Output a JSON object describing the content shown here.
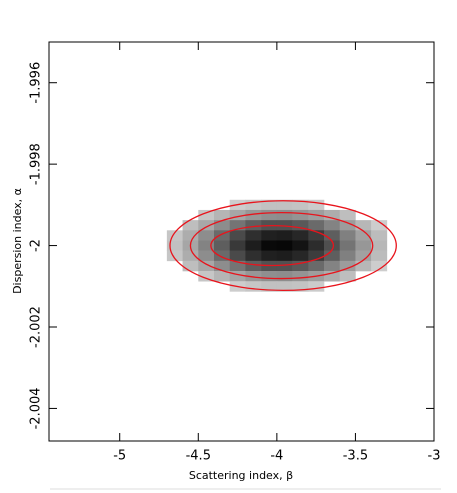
{
  "chart_data": {
    "type": "heatmap",
    "xlabel": "Scattering index, β",
    "ylabel": "Dispersion index, α",
    "xlim": [
      -5.45,
      -3.0
    ],
    "ylim": [
      -2.0048,
      -1.995
    ],
    "xticks": [
      -5,
      -4.5,
      -4,
      -3.5,
      -3
    ],
    "yticks": [
      -2.004,
      -2.002,
      -2,
      -1.998,
      -1.996
    ],
    "x": [
      -4.65,
      -4.55,
      -4.45,
      -4.35,
      -4.25,
      -4.15,
      -4.05,
      -3.95,
      -3.85,
      -3.75,
      -3.65,
      -3.55,
      -3.45,
      -3.35,
      -3.25
    ],
    "y": [
      -1.999,
      -1.99925,
      -1.9995,
      -1.99975,
      -2,
      -2.00025,
      -2.0005,
      -2.00075,
      -2.001
    ],
    "z": [
      [
        0,
        0,
        0,
        0,
        0.2,
        0.23,
        0.25,
        0.25,
        0.24,
        0.21,
        0,
        0,
        0,
        0,
        0
      ],
      [
        0,
        0,
        0.23,
        0.3,
        0.36,
        0.42,
        0.45,
        0.46,
        0.43,
        0.39,
        0.33,
        0.26,
        0,
        0,
        0
      ],
      [
        0,
        0.26,
        0.35,
        0.46,
        0.56,
        0.65,
        0.7,
        0.7,
        0.67,
        0.6,
        0.5,
        0.4,
        0.29,
        0.2,
        0
      ],
      [
        0.23,
        0.33,
        0.46,
        0.6,
        0.73,
        0.84,
        0.9,
        0.91,
        0.87,
        0.78,
        0.65,
        0.51,
        0.38,
        0.27,
        0
      ],
      [
        0.25,
        0.36,
        0.5,
        0.65,
        0.8,
        0.91,
        0.99,
        1.0,
        0.95,
        0.85,
        0.71,
        0.56,
        0.42,
        0.29,
        0
      ],
      [
        0.23,
        0.33,
        0.46,
        0.6,
        0.73,
        0.84,
        0.9,
        0.91,
        0.87,
        0.78,
        0.65,
        0.51,
        0.38,
        0.27,
        0
      ],
      [
        0,
        0.26,
        0.35,
        0.46,
        0.56,
        0.65,
        0.7,
        0.7,
        0.67,
        0.6,
        0.5,
        0.4,
        0.29,
        0.2,
        0
      ],
      [
        0,
        0,
        0.23,
        0.3,
        0.36,
        0.42,
        0.45,
        0.46,
        0.43,
        0.39,
        0.33,
        0.26,
        0,
        0,
        0
      ],
      [
        0,
        0,
        0,
        0,
        0.2,
        0.23,
        0.25,
        0.25,
        0.24,
        0.21,
        0,
        0,
        0,
        0,
        0
      ]
    ],
    "contour_color": "#e8141c",
    "contours": [
      {
        "cx": -4.03,
        "cy": -2.0,
        "rx": 0.39,
        "ry": 0.00049
      },
      {
        "cx": -3.97,
        "cy": -2.0,
        "rx": 0.58,
        "ry": 0.00081
      },
      {
        "cx": -3.96,
        "cy": -2.0,
        "rx": 0.72,
        "ry": 0.0011
      }
    ]
  }
}
